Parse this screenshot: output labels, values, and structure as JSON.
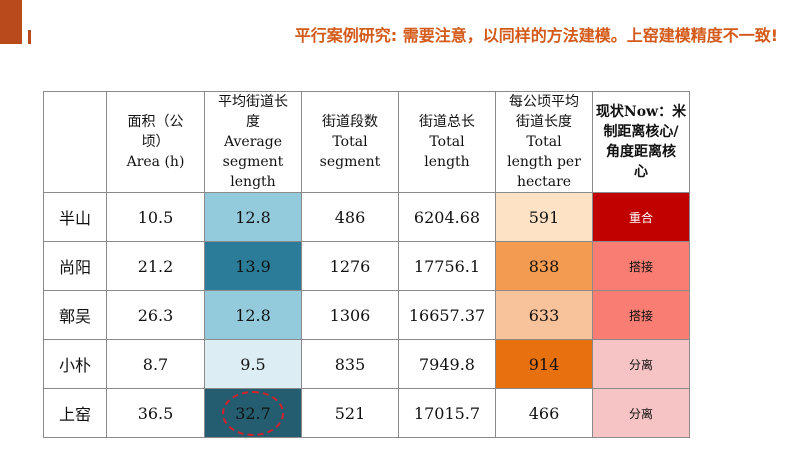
{
  "title": "平行案例研究: 需要注意，以同样的方法建模。上窑建模精度不一致!",
  "table": {
    "headers": {
      "area": [
        "面积（公",
        "顷）",
        "Area (h)"
      ],
      "avg_segment": [
        "平均街道长",
        "度",
        "Average",
        "segment",
        "length"
      ],
      "total_segment": [
        "街道段数",
        "Total",
        "segment"
      ],
      "total_length": [
        "街道总长",
        "Total",
        "length"
      ],
      "length_per_hectare": [
        "每公顷平均",
        "街道长度",
        "Total",
        "length per",
        "hectare"
      ],
      "status": [
        "现状Now：米",
        "制距离核心/",
        "角度距离核",
        "心"
      ]
    },
    "rows": [
      {
        "name": "半山",
        "area": "10.5",
        "avg_segment": "12.8",
        "total_segment": "486",
        "total_length": "6204.68",
        "length_per_hectare": "591",
        "status": "重合",
        "avg_color": "#94cbdc",
        "lph_color": "#fde2c6",
        "status_color": "#c10000",
        "status_text_color": "#ffffff",
        "avg_text_color": "#111111"
      },
      {
        "name": "尚阳",
        "area": "21.2",
        "avg_segment": "13.9",
        "total_segment": "1276",
        "total_length": "17756.1",
        "length_per_hectare": "838",
        "status": "搭接",
        "avg_color": "#2b7c98",
        "lph_color": "#f49b52",
        "status_color": "#f97d72",
        "status_text_color": "#111111",
        "avg_text_color": "#111111"
      },
      {
        "name": "鄣吴",
        "area": "26.3",
        "avg_segment": "12.8",
        "total_segment": "1306",
        "total_length": "16657.37",
        "length_per_hectare": "633",
        "status": "搭接",
        "avg_color": "#94cbdc",
        "lph_color": "#f8c29a",
        "status_color": "#f97d72",
        "status_text_color": "#111111",
        "avg_text_color": "#111111"
      },
      {
        "name": "小朴",
        "area": "8.7",
        "avg_segment": "9.5",
        "total_segment": "835",
        "total_length": "7949.8",
        "length_per_hectare": "914",
        "status": "分离",
        "avg_color": "#dcedf3",
        "lph_color": "#e8710f",
        "status_color": "#f6c4c4",
        "status_text_color": "#111111",
        "avg_text_color": "#111111"
      },
      {
        "name": "上窑",
        "area": "36.5",
        "avg_segment": "32.7",
        "total_segment": "521",
        "total_length": "17015.7",
        "length_per_hectare": "466",
        "status": "分离",
        "avg_color": "#235d6f",
        "lph_color": "#ffffff",
        "status_color": "#f6c4c4",
        "status_text_color": "#111111",
        "avg_text_color": "#111111"
      }
    ]
  },
  "colors": {
    "accent": "#b84a1b",
    "title": "#d35a1a",
    "highlight_circle": "#d4202a"
  }
}
